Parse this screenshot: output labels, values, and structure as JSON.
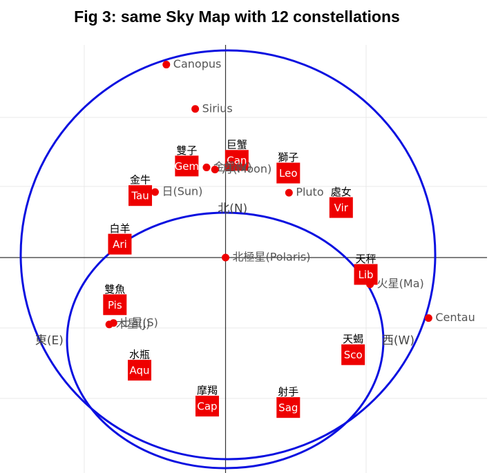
{
  "chart_data": {
    "type": "scatter",
    "title": "Fig 3: same Sky Map with 12 constellations",
    "xlim": [
      -3.2,
      3.7
    ],
    "ylim": [
      -3.06,
      3.02
    ],
    "star_color": "#ee0000",
    "box_color": "#ee0000",
    "directions": [
      {
        "label": "北(N)",
        "x": 0.1,
        "y": 0.69
      },
      {
        "label": "東(E)",
        "x": -2.5,
        "y": -1.18
      },
      {
        "label": "西(W)",
        "x": 2.45,
        "y": -1.18
      }
    ],
    "stars": [
      {
        "label": "Canopus",
        "x": -0.84,
        "y": 2.74
      },
      {
        "label": "Sirius",
        "x": -0.43,
        "y": 2.11
      },
      {
        "label": "日(Sun)",
        "x": -1.0,
        "y": 0.93
      },
      {
        "label": "Pluto",
        "x": 0.9,
        "y": 0.92
      },
      {
        "label": "北極星(Polaris)",
        "x": 0,
        "y": 0
      },
      {
        "label": "火星(Ma)",
        "x": 2.05,
        "y": -0.38
      },
      {
        "label": "Centau",
        "x": 2.88,
        "y": -0.86
      },
      {
        "label": "木星(J)",
        "x": -1.65,
        "y": -0.95
      },
      {
        "label": "土星(S)",
        "x": -1.59,
        "y": -0.93
      },
      {
        "label": "金星(V)",
        "x": -0.27,
        "y": 1.28
      },
      {
        "label": "月(Moon)",
        "x": -0.15,
        "y": 1.25
      }
    ],
    "constellations": [
      {
        "label": "巨蟹",
        "abbr": "Can",
        "x": 0.16,
        "y": 1.38
      },
      {
        "label": "雙子",
        "abbr": "Gem",
        "x": -0.55,
        "y": 1.3
      },
      {
        "label": "獅子",
        "abbr": "Leo",
        "x": 0.89,
        "y": 1.2
      },
      {
        "label": "金牛",
        "abbr": "Tau",
        "x": -1.21,
        "y": 0.88
      },
      {
        "label": "處女",
        "abbr": "Vir",
        "x": 1.64,
        "y": 0.71
      },
      {
        "label": "白羊",
        "abbr": "Ari",
        "x": -1.5,
        "y": 0.19
      },
      {
        "label": "天秤",
        "abbr": "Lib",
        "x": 1.99,
        "y": -0.24
      },
      {
        "label": "雙魚",
        "abbr": "Pis",
        "x": -1.57,
        "y": -0.67
      },
      {
        "label": "天蝎",
        "abbr": "Sco",
        "x": 1.81,
        "y": -1.38
      },
      {
        "label": "水瓶",
        "abbr": "Aqu",
        "x": -1.22,
        "y": -1.6
      },
      {
        "label": "摩羯",
        "abbr": "Cap",
        "x": -0.26,
        "y": -2.11
      },
      {
        "label": "射手",
        "abbr": "Sag",
        "x": 0.89,
        "y": -2.13
      }
    ]
  }
}
